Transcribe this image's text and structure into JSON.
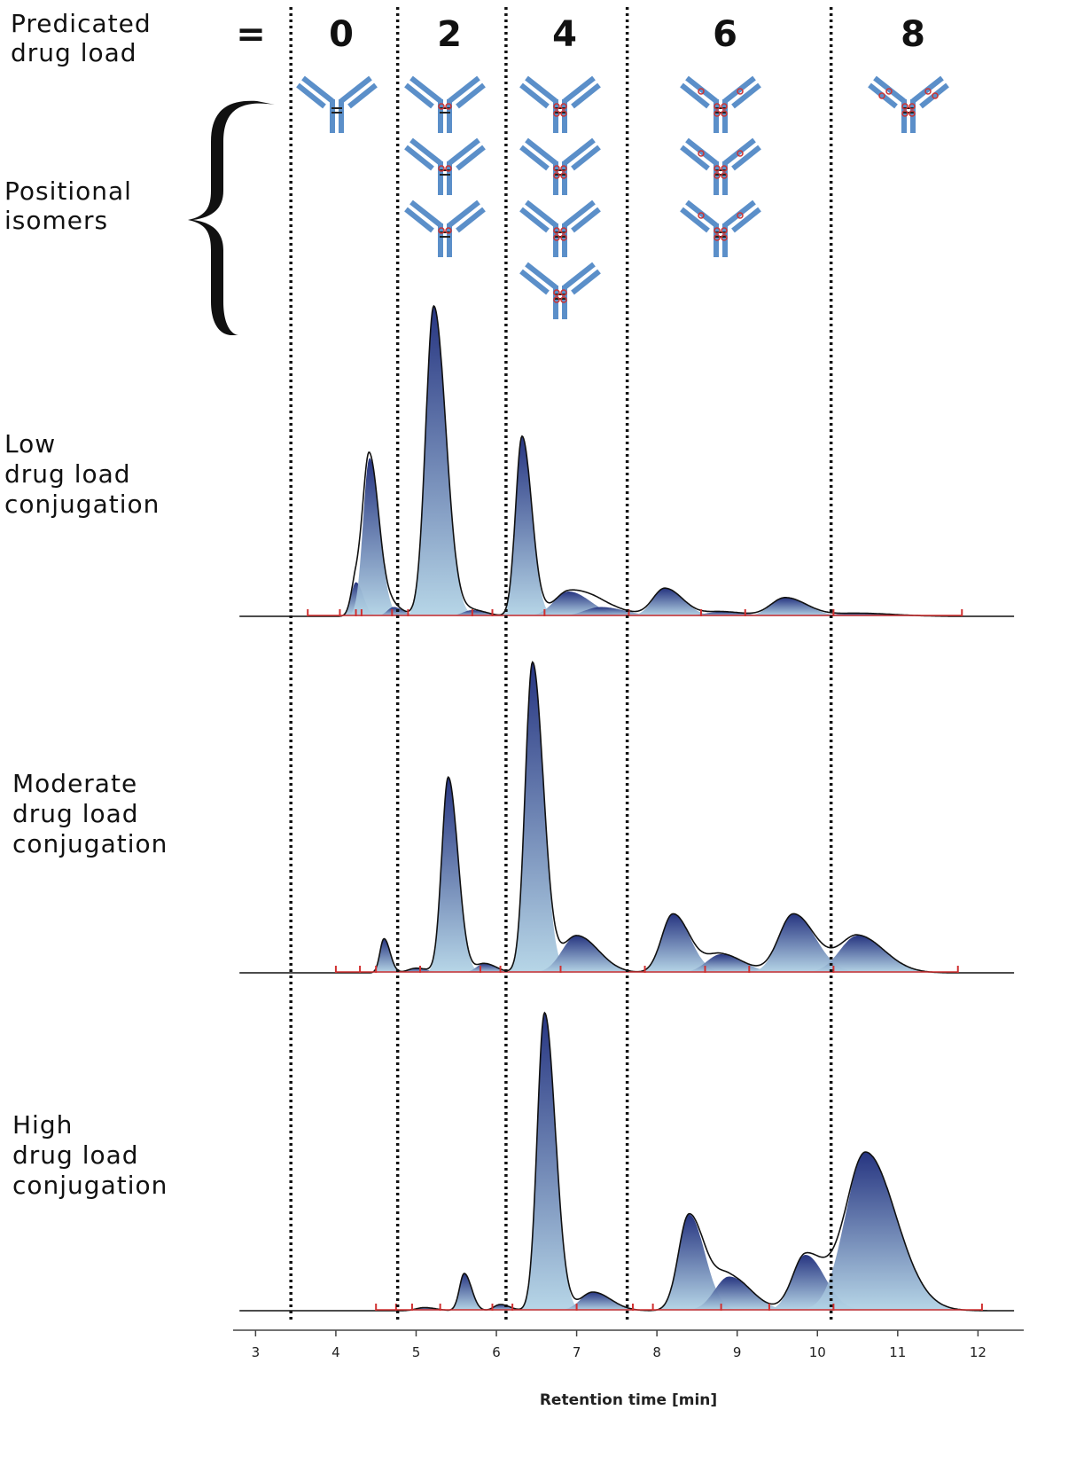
{
  "chart_data": {
    "type": "chromatogram",
    "load_label": [
      "Predicated",
      "drug load"
    ],
    "equals": "=",
    "drug_loads": [
      0,
      2,
      4,
      6,
      8
    ],
    "isomer_label": [
      "Positional",
      "isomers"
    ],
    "boundaries": [
      3.44,
      4.77,
      6.12,
      7.63,
      10.17
    ],
    "xlabel": "Retention time [min]",
    "xlim": [
      2.72,
      12.57
    ],
    "xticks": [
      3,
      4,
      5,
      6,
      7,
      8,
      9,
      10,
      11,
      12
    ],
    "ylim": [
      0,
      100
    ],
    "series": [
      {
        "name": [
          "Low",
          "drug load",
          "conjugation"
        ],
        "color": "#1b2a7a",
        "fill_light": "#b3d4e6",
        "marker_color": "#d03030",
        "peaks": [
          {
            "rt": 4.25,
            "height": 11,
            "width": 0.06
          },
          {
            "rt": 4.42,
            "height": 51,
            "width": 0.08
          },
          {
            "rt": 4.72,
            "height": 3,
            "width": 0.08
          },
          {
            "rt": 5.22,
            "height": 100,
            "width": 0.1
          },
          {
            "rt": 5.7,
            "height": 2,
            "width": 0.12
          },
          {
            "rt": 6.32,
            "height": 58,
            "width": 0.08
          },
          {
            "rt": 6.9,
            "height": 8,
            "width": 0.18
          },
          {
            "rt": 7.3,
            "height": 3,
            "width": 0.2
          },
          {
            "rt": 8.1,
            "height": 9,
            "width": 0.15
          },
          {
            "rt": 8.8,
            "height": 1.5,
            "width": 0.2
          },
          {
            "rt": 9.6,
            "height": 6,
            "width": 0.18
          },
          {
            "rt": 10.5,
            "height": 1,
            "width": 0.3
          }
        ],
        "markers": [
          3.65,
          4.05,
          4.25,
          4.32,
          4.7,
          4.9,
          5.7,
          5.95,
          6.6,
          7.65,
          8.55,
          9.1,
          10.2,
          11.8
        ]
      },
      {
        "name": [
          "Moderate",
          "drug load",
          "conjugation"
        ],
        "color": "#1b2a7a",
        "fill_light": "#b3d4e6",
        "marker_color": "#d03030",
        "peaks": [
          {
            "rt": 4.6,
            "height": 11,
            "width": 0.05
          },
          {
            "rt": 5.0,
            "height": 1.5,
            "width": 0.1
          },
          {
            "rt": 5.4,
            "height": 63,
            "width": 0.08
          },
          {
            "rt": 5.85,
            "height": 3,
            "width": 0.1
          },
          {
            "rt": 6.45,
            "height": 100,
            "width": 0.09
          },
          {
            "rt": 7.0,
            "height": 12,
            "width": 0.18
          },
          {
            "rt": 8.2,
            "height": 19,
            "width": 0.14
          },
          {
            "rt": 8.8,
            "height": 6,
            "width": 0.18
          },
          {
            "rt": 9.7,
            "height": 19,
            "width": 0.18
          },
          {
            "rt": 10.5,
            "height": 12,
            "width": 0.22
          }
        ],
        "markers": [
          4.0,
          4.3,
          4.5,
          5.05,
          5.8,
          6.05,
          6.8,
          7.85,
          8.6,
          9.15,
          10.2,
          11.75
        ]
      },
      {
        "name": [
          "High",
          "drug load",
          "conjugation"
        ],
        "color": "#1b2a7a",
        "fill_light": "#b3d4e6",
        "marker_color": "#d03030",
        "peaks": [
          {
            "rt": 5.1,
            "height": 1,
            "width": 0.1
          },
          {
            "rt": 5.6,
            "height": 12,
            "width": 0.06
          },
          {
            "rt": 6.05,
            "height": 2,
            "width": 0.08
          },
          {
            "rt": 6.6,
            "height": 96,
            "width": 0.09
          },
          {
            "rt": 7.2,
            "height": 6,
            "width": 0.15
          },
          {
            "rt": 8.4,
            "height": 31,
            "width": 0.13
          },
          {
            "rt": 8.9,
            "height": 11,
            "width": 0.18
          },
          {
            "rt": 9.85,
            "height": 18,
            "width": 0.16
          },
          {
            "rt": 10.6,
            "height": 51,
            "width": 0.25
          }
        ],
        "markers": [
          4.5,
          4.75,
          4.95,
          5.3,
          5.95,
          6.2,
          7.0,
          7.7,
          7.95,
          8.8,
          9.4,
          10.2,
          12.05
        ]
      }
    ]
  }
}
